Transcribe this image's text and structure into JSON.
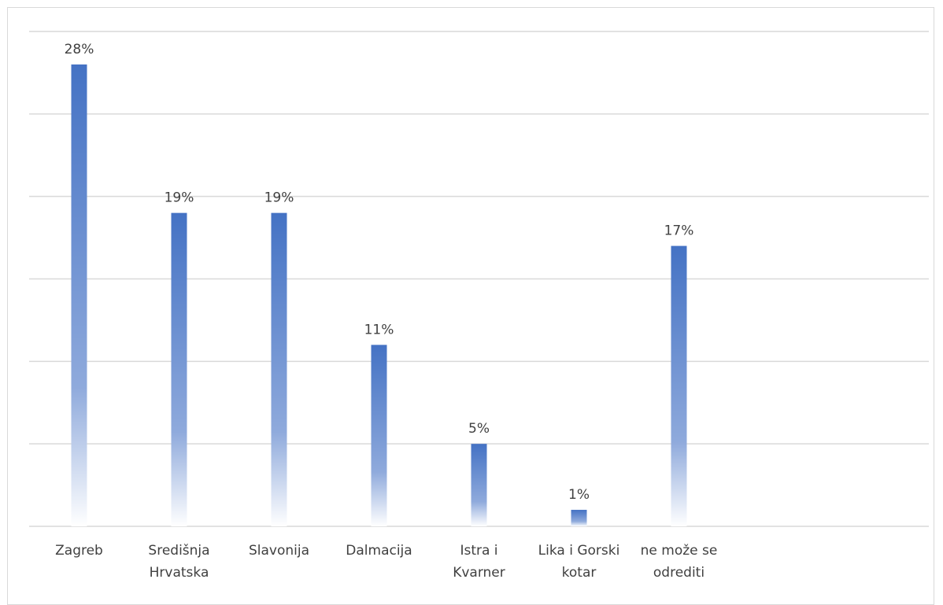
{
  "chart_data": {
    "type": "bar",
    "title": "",
    "xlabel": "",
    "ylabel": "",
    "categories": [
      [
        "Zagreb"
      ],
      [
        "Središnja",
        "Hrvatska"
      ],
      [
        "Slavonija"
      ],
      [
        "Dalmacija"
      ],
      [
        "Istra i",
        "Kvarner"
      ],
      [
        "Lika i Gorski",
        "kotar"
      ],
      [
        "ne može se",
        "odrediti"
      ]
    ],
    "values": [
      28,
      19,
      19,
      11,
      5,
      1,
      17
    ],
    "data_labels": [
      "28%",
      "19%",
      "19%",
      "11%",
      "5%",
      "1%",
      "17%"
    ],
    "ylim": [
      0,
      30
    ],
    "grid": true,
    "legend": "none",
    "colors": {
      "bar_top": "#4472c4",
      "bar_bottom": "#ffffff",
      "grid": "#d9d9d9",
      "axis": "#d9d9d9",
      "text": "#404040",
      "frame": "#d9d9d9"
    }
  }
}
